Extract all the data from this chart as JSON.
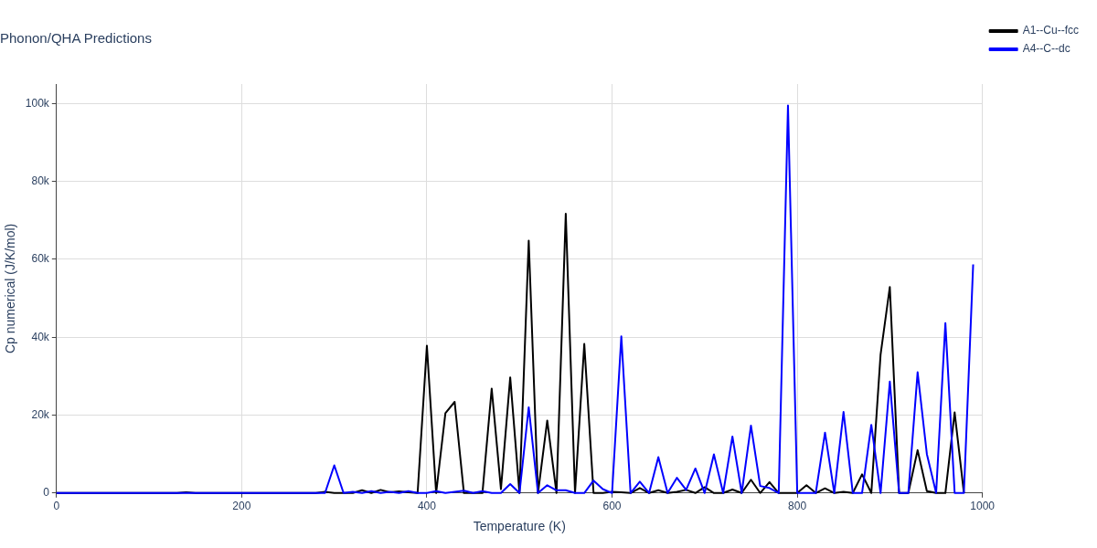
{
  "chart_data": {
    "type": "line",
    "title": "Phonon/QHA Predictions",
    "xlabel": "Temperature (K)",
    "ylabel": "Cp numerical (J/K/mol)",
    "x": [
      0,
      10,
      20,
      30,
      40,
      50,
      60,
      70,
      80,
      90,
      100,
      110,
      120,
      130,
      140,
      150,
      160,
      170,
      180,
      190,
      200,
      210,
      220,
      230,
      240,
      250,
      260,
      270,
      280,
      290,
      300,
      310,
      320,
      330,
      340,
      350,
      360,
      370,
      380,
      390,
      400,
      410,
      420,
      430,
      440,
      450,
      460,
      470,
      480,
      490,
      500,
      510,
      520,
      530,
      540,
      550,
      560,
      570,
      580,
      590,
      600,
      610,
      620,
      630,
      640,
      650,
      660,
      670,
      680,
      690,
      700,
      710,
      720,
      730,
      740,
      750,
      760,
      770,
      780,
      790,
      800,
      810,
      820,
      830,
      840,
      850,
      860,
      870,
      880,
      890,
      900,
      910,
      920,
      930,
      940,
      950,
      960,
      970,
      980,
      990
    ],
    "series": [
      {
        "name": "A1--Cu--fcc",
        "color": "#000000",
        "values": [
          0,
          0,
          0,
          0,
          0,
          0,
          0,
          0,
          0,
          0,
          0,
          0,
          0,
          0,
          200,
          0,
          0,
          0,
          0,
          0,
          0,
          0,
          0,
          0,
          0,
          0,
          0,
          0,
          0,
          300,
          0,
          0,
          0,
          700,
          0,
          800,
          200,
          400,
          200,
          0,
          37800,
          0,
          20500,
          23400,
          0,
          0,
          0,
          26800,
          1000,
          29700,
          0,
          64800,
          0,
          18600,
          0,
          71700,
          0,
          38300,
          0,
          0,
          300,
          200,
          0,
          1300,
          0,
          700,
          0,
          300,
          800,
          0,
          1500,
          0,
          0,
          900,
          0,
          3400,
          0,
          2800,
          0,
          0,
          0,
          2000,
          0,
          1200,
          0,
          300,
          0,
          4800,
          0,
          35500,
          52900,
          0,
          0,
          11000,
          500,
          0,
          0,
          20700,
          0,
          null
        ]
      },
      {
        "name": "A4--C--dc",
        "color": "#0000ff",
        "values": [
          0,
          0,
          0,
          0,
          0,
          0,
          0,
          0,
          0,
          0,
          0,
          0,
          0,
          0,
          0,
          0,
          0,
          0,
          0,
          0,
          0,
          0,
          0,
          0,
          0,
          0,
          0,
          0,
          0,
          0,
          7100,
          0,
          300,
          0,
          500,
          0,
          300,
          0,
          500,
          0,
          0,
          500,
          0,
          300,
          600,
          0,
          500,
          0,
          0,
          2300,
          0,
          22000,
          0,
          2000,
          700,
          700,
          0,
          0,
          3200,
          1000,
          0,
          40200,
          0,
          2900,
          0,
          9200,
          0,
          3900,
          800,
          6300,
          0,
          9900,
          0,
          14500,
          0,
          17300,
          1800,
          1300,
          0,
          99500,
          0,
          0,
          0,
          15500,
          0,
          20800,
          0,
          0,
          17500,
          0,
          28600,
          0,
          0,
          31000,
          10000,
          0,
          43600,
          0,
          0,
          58700
        ]
      }
    ],
    "xlim": [
      0,
      1000
    ],
    "xticks": [
      0,
      200,
      400,
      600,
      800,
      1000
    ],
    "ylim": [
      0,
      105000
    ],
    "yticks": [
      0,
      {
        "value": 20000,
        "label": "20k"
      },
      {
        "value": 40000,
        "label": "40k"
      },
      {
        "value": 60000,
        "label": "60k"
      },
      {
        "value": 80000,
        "label": "80k"
      },
      {
        "value": 100000,
        "label": "100k"
      }
    ],
    "grid": true,
    "legend": "top right",
    "marker": "none",
    "line_style": "solid"
  }
}
